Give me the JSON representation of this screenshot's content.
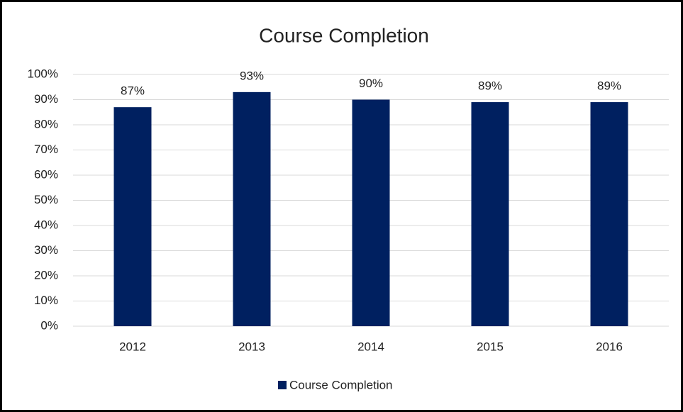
{
  "chart_data": {
    "type": "bar",
    "title": "Course Completion",
    "categories": [
      "2012",
      "2013",
      "2014",
      "2015",
      "2016"
    ],
    "series": [
      {
        "name": "Course Completion",
        "color": "#002060",
        "values": [
          87,
          93,
          90,
          89,
          89
        ],
        "value_labels": [
          "87%",
          "93%",
          "90%",
          "89%",
          "89%"
        ]
      }
    ],
    "ylim": [
      0,
      100
    ],
    "yticks": [
      {
        "value": 0,
        "label": "0%"
      },
      {
        "value": 10,
        "label": "10%"
      },
      {
        "value": 20,
        "label": "20%"
      },
      {
        "value": 30,
        "label": "30%"
      },
      {
        "value": 40,
        "label": "40%"
      },
      {
        "value": 50,
        "label": "50%"
      },
      {
        "value": 60,
        "label": "60%"
      },
      {
        "value": 70,
        "label": "70%"
      },
      {
        "value": 80,
        "label": "80%"
      },
      {
        "value": 90,
        "label": "90%"
      },
      {
        "value": 100,
        "label": "100%"
      }
    ],
    "grid": true,
    "legend": "bottom"
  }
}
